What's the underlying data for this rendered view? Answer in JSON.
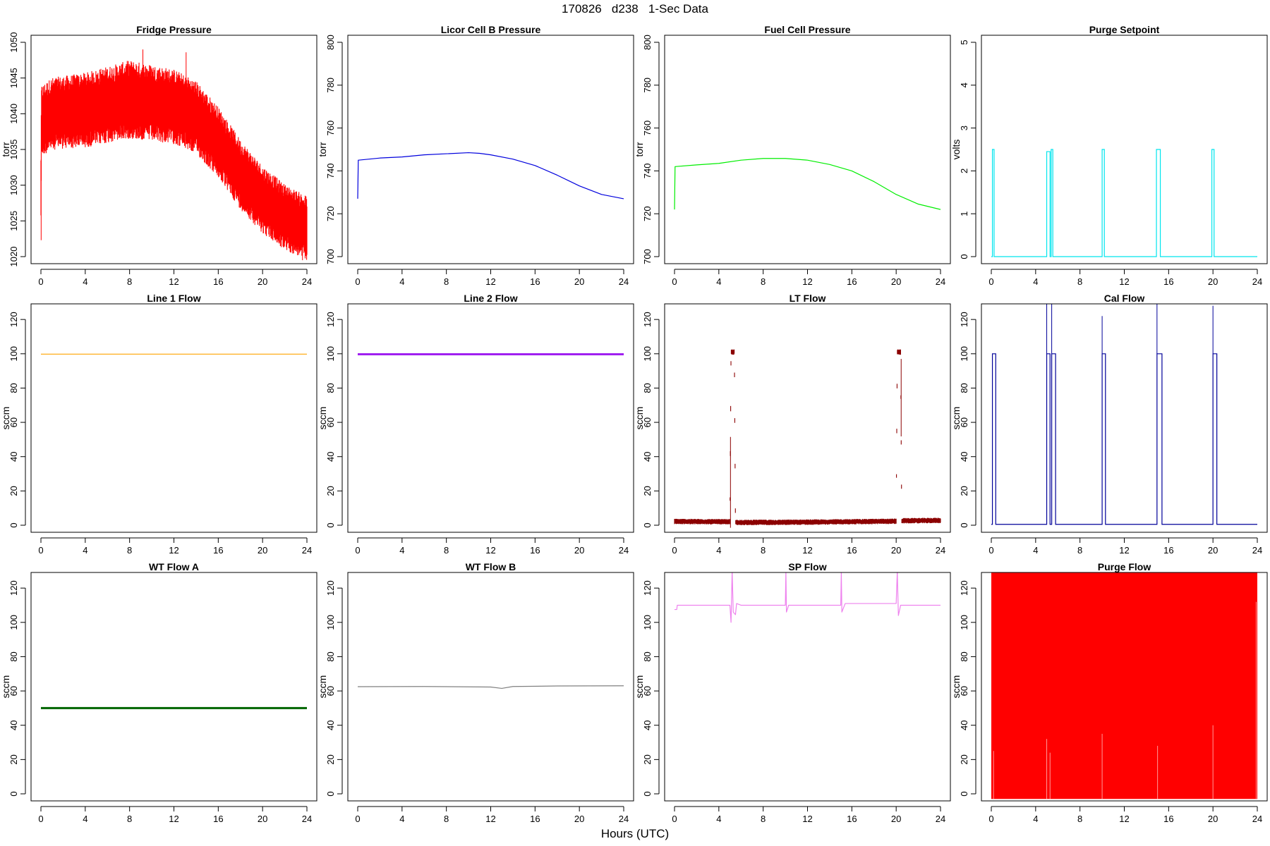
{
  "figure": {
    "title": "170826   d238   1-Sec Data",
    "xlabel": "Hours (UTC)"
  },
  "chart_data": [
    {
      "type": "line",
      "title": "Fridge Pressure",
      "ylabel": "torr",
      "color": "#ff0000",
      "style": "band",
      "xlim": [
        0,
        24
      ],
      "ylim": [
        1020,
        1050
      ],
      "xticks": [
        0,
        4,
        8,
        12,
        16,
        20,
        24
      ],
      "yticks": [
        1020,
        1025,
        1030,
        1035,
        1040,
        1045,
        1050
      ],
      "center": [
        [
          0,
          1030
        ],
        [
          0.05,
          1039
        ],
        [
          1,
          1040
        ],
        [
          4,
          1040.5
        ],
        [
          8,
          1042
        ],
        [
          10,
          1041.5
        ],
        [
          12,
          1041
        ],
        [
          14,
          1039.5
        ],
        [
          16,
          1036
        ],
        [
          18,
          1031.5
        ],
        [
          20,
          1028
        ],
        [
          22,
          1025.5
        ],
        [
          24,
          1024
        ]
      ],
      "band_halfwidth": [
        [
          0,
          5
        ],
        [
          8,
          5.5
        ],
        [
          16,
          5
        ],
        [
          24,
          4.5
        ]
      ],
      "excursions": [
        [
          0.02,
          1022.3
        ],
        [
          9.2,
          1049
        ],
        [
          13.1,
          1048.6
        ],
        [
          23.6,
          1019.5
        ]
      ]
    },
    {
      "type": "line",
      "title": "Licor Cell B Pressure",
      "ylabel": "torr",
      "color": "#0000dd",
      "xlim": [
        0,
        24
      ],
      "ylim": [
        700,
        800
      ],
      "xticks": [
        0,
        4,
        8,
        12,
        16,
        20,
        24
      ],
      "yticks": [
        700,
        720,
        740,
        760,
        780,
        800
      ],
      "points": [
        [
          0,
          727
        ],
        [
          0.05,
          745
        ],
        [
          2,
          746
        ],
        [
          4,
          746.5
        ],
        [
          6,
          747.5
        ],
        [
          8,
          748
        ],
        [
          10,
          748.5
        ],
        [
          11,
          748.2
        ],
        [
          12,
          747.5
        ],
        [
          14,
          745.5
        ],
        [
          16,
          742.5
        ],
        [
          18,
          738
        ],
        [
          20,
          733
        ],
        [
          22,
          729
        ],
        [
          24,
          727
        ]
      ]
    },
    {
      "type": "line",
      "title": "Fuel Cell Pressure",
      "ylabel": "torr",
      "color": "#00ee00",
      "xlim": [
        0,
        24
      ],
      "ylim": [
        700,
        800
      ],
      "xticks": [
        0,
        4,
        8,
        12,
        16,
        20,
        24
      ],
      "yticks": [
        700,
        720,
        740,
        760,
        780,
        800
      ],
      "points": [
        [
          0,
          722
        ],
        [
          0.05,
          742
        ],
        [
          2,
          742.8
        ],
        [
          4,
          743.5
        ],
        [
          6,
          745
        ],
        [
          8,
          745.8
        ],
        [
          10,
          745.8
        ],
        [
          12,
          745
        ],
        [
          14,
          743
        ],
        [
          16,
          740
        ],
        [
          18,
          735
        ],
        [
          20,
          729
        ],
        [
          22,
          724.5
        ],
        [
          24,
          722
        ]
      ]
    },
    {
      "type": "line",
      "title": "Purge Setpoint",
      "ylabel": "volts",
      "color": "#00e5ee",
      "style": "pulses",
      "baseline": 0,
      "xlim": [
        0,
        24
      ],
      "ylim": [
        0,
        5
      ],
      "xticks": [
        0,
        4,
        8,
        12,
        16,
        20,
        24
      ],
      "yticks": [
        0,
        1,
        2,
        3,
        4,
        5
      ],
      "pulses": [
        [
          0.1,
          0.25,
          2.5
        ],
        [
          5.0,
          5.3,
          2.45
        ],
        [
          5.4,
          5.55,
          2.5
        ],
        [
          10.0,
          10.2,
          2.5
        ],
        [
          14.9,
          15.25,
          2.5
        ],
        [
          19.9,
          20.1,
          2.5
        ]
      ]
    },
    {
      "type": "line",
      "title": "Line 1 Flow",
      "ylabel": "sccm",
      "color": "#ffa500",
      "xlim": [
        0,
        24
      ],
      "ylim": [
        0,
        125
      ],
      "xticks": [
        0,
        4,
        8,
        12,
        16,
        20,
        24
      ],
      "yticks": [
        0,
        20,
        40,
        60,
        80,
        100,
        120
      ],
      "points": [
        [
          0,
          99.8
        ],
        [
          24,
          99.8
        ]
      ]
    },
    {
      "type": "line",
      "title": "Line 2 Flow",
      "ylabel": "sccm",
      "color": "#a020f0",
      "line_width": 3,
      "xlim": [
        0,
        24
      ],
      "ylim": [
        0,
        125
      ],
      "xticks": [
        0,
        4,
        8,
        12,
        16,
        20,
        24
      ],
      "yticks": [
        0,
        20,
        40,
        60,
        80,
        100,
        120
      ],
      "points": [
        [
          0,
          99.7
        ],
        [
          24,
          99.7
        ]
      ]
    },
    {
      "type": "line",
      "title": "LT Flow",
      "ylabel": "sccm",
      "color": "#8b0000",
      "style": "band",
      "xlim": [
        0,
        24
      ],
      "ylim": [
        0,
        125
      ],
      "xticks": [
        0,
        4,
        8,
        12,
        16,
        20,
        24
      ],
      "yticks": [
        0,
        20,
        40,
        60,
        80,
        100,
        120
      ],
      "center": [
        [
          0,
          2.2
        ],
        [
          5.0,
          2.0
        ],
        [
          5.1,
          101
        ],
        [
          5.4,
          101
        ],
        [
          5.5,
          1.6
        ],
        [
          12,
          1.8
        ],
        [
          20.0,
          2.3
        ],
        [
          20.1,
          101
        ],
        [
          20.4,
          101
        ],
        [
          20.5,
          2.6
        ],
        [
          24,
          2.8
        ]
      ],
      "band_halfwidth": [
        [
          0,
          1.6
        ],
        [
          24,
          1.6
        ]
      ],
      "excursions": [
        [
          5.05,
          -1.5
        ],
        [
          20.45,
          97
        ]
      ]
    },
    {
      "type": "line",
      "title": "Cal Flow",
      "ylabel": "sccm",
      "color": "#000099",
      "style": "pulses",
      "baseline": 0.5,
      "xlim": [
        0,
        24
      ],
      "ylim": [
        0,
        125
      ],
      "xticks": [
        0,
        4,
        8,
        12,
        16,
        20,
        24
      ],
      "yticks": [
        0,
        20,
        40,
        60,
        80,
        100,
        120
      ],
      "pulses": [
        [
          0.1,
          0.4,
          100
        ],
        [
          5.0,
          5.3,
          100
        ],
        [
          5.45,
          5.8,
          100
        ],
        [
          10.0,
          10.3,
          100
        ],
        [
          14.95,
          15.4,
          100
        ],
        [
          20.0,
          20.35,
          100
        ]
      ],
      "spikes": [
        [
          5.0,
          135
        ],
        [
          5.45,
          135
        ],
        [
          10.0,
          122
        ],
        [
          14.95,
          133
        ],
        [
          20.0,
          128
        ]
      ]
    },
    {
      "type": "line",
      "title": "WT Flow A",
      "ylabel": "sccm",
      "color": "#006400",
      "line_width": 3,
      "xlim": [
        0,
        24
      ],
      "ylim": [
        0,
        125
      ],
      "xticks": [
        0,
        4,
        8,
        12,
        16,
        20,
        24
      ],
      "yticks": [
        0,
        20,
        40,
        60,
        80,
        100,
        120
      ],
      "points": [
        [
          0,
          50
        ],
        [
          24,
          50
        ]
      ]
    },
    {
      "type": "line",
      "title": "WT Flow B",
      "ylabel": "sccm",
      "color": "#808080",
      "xlim": [
        0,
        24
      ],
      "ylim": [
        0,
        125
      ],
      "xticks": [
        0,
        4,
        8,
        12,
        16,
        20,
        24
      ],
      "yticks": [
        0,
        20,
        40,
        60,
        80,
        100,
        120
      ],
      "points": [
        [
          0,
          62.5
        ],
        [
          6,
          62.6
        ],
        [
          12,
          62.3
        ],
        [
          13,
          61.5
        ],
        [
          14,
          62.6
        ],
        [
          18,
          62.9
        ],
        [
          24,
          63
        ]
      ]
    },
    {
      "type": "line",
      "title": "SP Flow",
      "ylabel": "sccm",
      "color": "#ee82ee",
      "xlim": [
        0,
        24
      ],
      "ylim": [
        0,
        125
      ],
      "xticks": [
        0,
        4,
        8,
        12,
        16,
        20,
        24
      ],
      "yticks": [
        0,
        20,
        40,
        60,
        80,
        100,
        120
      ],
      "points": [
        [
          0,
          107.5
        ],
        [
          0.2,
          107.5
        ],
        [
          0.25,
          110
        ],
        [
          5.0,
          110
        ],
        [
          5.1,
          100
        ],
        [
          5.2,
          130
        ],
        [
          5.3,
          106
        ],
        [
          5.5,
          104.5
        ],
        [
          5.6,
          111
        ],
        [
          6,
          110
        ],
        [
          10.0,
          110
        ],
        [
          10.05,
          130
        ],
        [
          10.1,
          106
        ],
        [
          10.3,
          110
        ],
        [
          15.0,
          110
        ],
        [
          15.05,
          130
        ],
        [
          15.1,
          106
        ],
        [
          15.4,
          111
        ],
        [
          20.0,
          111
        ],
        [
          20.1,
          130
        ],
        [
          20.2,
          104
        ],
        [
          20.4,
          110
        ],
        [
          24,
          110
        ]
      ]
    },
    {
      "type": "line",
      "title": "Purge Flow",
      "ylabel": "sccm",
      "color": "#ff0000",
      "style": "fill",
      "xlim": [
        0,
        24
      ],
      "ylim": [
        0,
        125
      ],
      "xticks": [
        0,
        4,
        8,
        12,
        16,
        20,
        24
      ],
      "yticks": [
        0,
        20,
        40,
        60,
        80,
        100,
        120
      ],
      "fill_range": [
        -3,
        130
      ]
    }
  ]
}
